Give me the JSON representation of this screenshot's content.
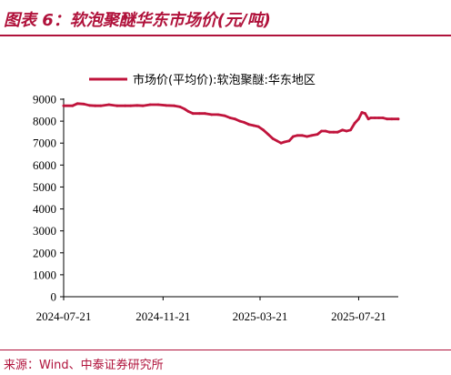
{
  "figure": {
    "title": "图表 6：软泡聚醚华东市场价(元/吨)",
    "source": "来源：Wind、中泰证券研究所"
  },
  "colors": {
    "accent": "#b0123b",
    "series": "#c0143c"
  },
  "chart_data": {
    "type": "line",
    "title": "",
    "xlabel": "",
    "ylabel": "",
    "ylim": [
      0,
      9000
    ],
    "yticks": [
      0,
      1000,
      2000,
      3000,
      4000,
      5000,
      6000,
      7000,
      8000,
      9000
    ],
    "xlim": [
      "2024-07-21",
      "2025-09-08"
    ],
    "xticks": [
      "2024-07-21",
      "2024-11-21",
      "2025-03-21",
      "2025-07-21"
    ],
    "grid": false,
    "legend": "top",
    "series": [
      {
        "name": "市场价(平均价):软泡聚醚:华东地区",
        "x": [
          "2024-07-21",
          "2024-08-01",
          "2024-08-07",
          "2024-08-15",
          "2024-08-22",
          "2024-08-29",
          "2024-09-05",
          "2024-09-15",
          "2024-09-25",
          "2024-10-05",
          "2024-10-12",
          "2024-10-20",
          "2024-10-27",
          "2024-11-05",
          "2024-11-15",
          "2024-11-25",
          "2024-12-05",
          "2024-12-12",
          "2024-12-18",
          "2024-12-22",
          "2024-12-28",
          "2025-01-05",
          "2025-01-12",
          "2025-01-20",
          "2025-01-28",
          "2025-02-05",
          "2025-02-12",
          "2025-02-18",
          "2025-02-24",
          "2025-03-01",
          "2025-03-07",
          "2025-03-13",
          "2025-03-19",
          "2025-03-25",
          "2025-03-31",
          "2025-04-06",
          "2025-04-11",
          "2025-04-16",
          "2025-04-20",
          "2025-04-26",
          "2025-05-01",
          "2025-05-06",
          "2025-05-12",
          "2025-05-18",
          "2025-05-24",
          "2025-05-31",
          "2025-06-05",
          "2025-06-10",
          "2025-06-15",
          "2025-06-20",
          "2025-06-25",
          "2025-07-01",
          "2025-07-06",
          "2025-07-11",
          "2025-07-16",
          "2025-07-21",
          "2025-07-25",
          "2025-07-29",
          "2025-08-02",
          "2025-08-05",
          "2025-08-10",
          "2025-08-15",
          "2025-08-20",
          "2025-08-25",
          "2025-08-31",
          "2025-09-08"
        ],
        "values": [
          8700,
          8700,
          8800,
          8780,
          8720,
          8700,
          8700,
          8750,
          8700,
          8700,
          8700,
          8720,
          8700,
          8750,
          8750,
          8720,
          8700,
          8650,
          8550,
          8450,
          8350,
          8350,
          8350,
          8300,
          8300,
          8250,
          8150,
          8100,
          8000,
          7950,
          7850,
          7800,
          7750,
          7600,
          7400,
          7200,
          7100,
          7000,
          7050,
          7100,
          7300,
          7350,
          7350,
          7300,
          7350,
          7400,
          7550,
          7550,
          7500,
          7500,
          7500,
          7600,
          7550,
          7600,
          7900,
          8100,
          8400,
          8350,
          8100,
          8150,
          8150,
          8150,
          8150,
          8100,
          8100,
          8100
        ]
      }
    ]
  }
}
